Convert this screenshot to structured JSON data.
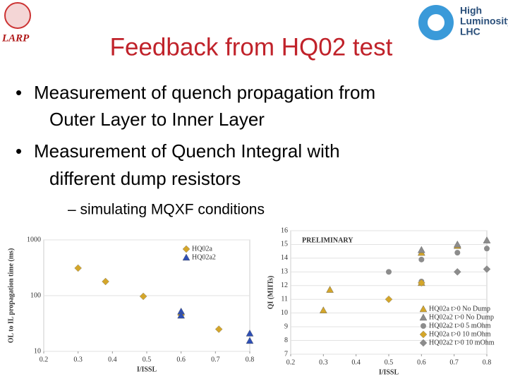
{
  "logos": {
    "left": "LARP",
    "right": [
      "High",
      "Luminosity",
      "LHC"
    ]
  },
  "header": {
    "title": "Feedback from HQ02 test"
  },
  "bullets": [
    "Measurement of quench propagation from",
    "Outer Layer to Inner Layer",
    "Measurement of Quench Integral with",
    "different dump resistors"
  ],
  "sub_bullet": "– simulating MQXF conditions",
  "chart_data": [
    {
      "type": "scatter",
      "ylabel": "OL to IL propagation time (ms)",
      "xlabel": "I/ISSL",
      "log_y": true,
      "xlim": [
        0.2,
        0.8
      ],
      "xticks": [
        0.2,
        0.3,
        0.4,
        0.5,
        0.6,
        0.7,
        0.8
      ],
      "ylim": [
        10,
        1000
      ],
      "yticks": [
        10,
        100,
        1000
      ],
      "legend": "top-right",
      "series": [
        {
          "name": "HQ02a",
          "color": "#d4a62a",
          "marker": "diamond",
          "x": [
            0.3,
            0.38,
            0.49,
            0.6,
            0.71
          ],
          "values": [
            312,
            179,
            97,
            45,
            25
          ]
        },
        {
          "name": "HQ02a2",
          "color": "#2e4fb5",
          "marker": "triangle",
          "x": [
            0.6,
            0.6,
            0.8,
            0.8
          ],
          "values": [
            52,
            44,
            21,
            15.5
          ]
        }
      ]
    },
    {
      "type": "scatter",
      "ylabel": "QI (MIITs)",
      "xlabel": "I/ISSL",
      "log_y": false,
      "annotation": "PRELIMINARY",
      "xlim": [
        0.2,
        0.8
      ],
      "xticks": [
        0.2,
        0.3,
        0.4,
        0.5,
        0.6,
        0.7,
        0.8
      ],
      "ylim": [
        7,
        16
      ],
      "yticks": [
        7,
        8,
        9,
        10,
        11,
        12,
        13,
        14,
        15,
        16
      ],
      "legend": "bottom-right",
      "series": [
        {
          "name": "HQ02a t>0 No Dump",
          "color": "#d4a62a",
          "marker": "triangle",
          "x": [
            0.3,
            0.32,
            0.6,
            0.6,
            0.71
          ],
          "values": [
            10.2,
            11.7,
            12.2,
            14.4,
            14.9
          ]
        },
        {
          "name": "HQ02a2 t>0 No Dump",
          "color": "#8c8c8c",
          "marker": "triangle",
          "x": [
            0.6,
            0.71,
            0.8
          ],
          "values": [
            14.6,
            15.0,
            15.3
          ]
        },
        {
          "name": "HQ02a2 t>0 5 mOhm",
          "color": "#8c8c8c",
          "marker": "circle",
          "x": [
            0.5,
            0.6,
            0.6,
            0.71,
            0.8
          ],
          "values": [
            13.0,
            13.9,
            12.3,
            14.4,
            14.7
          ]
        },
        {
          "name": "HQ02a t>0 10 mOhm",
          "color": "#d4a62a",
          "marker": "diamond",
          "x": [
            0.5,
            0.6
          ],
          "values": [
            11.0,
            12.2
          ]
        },
        {
          "name": "HQ02a2 t>0 10 mOhm",
          "color": "#8c8c8c",
          "marker": "diamond",
          "x": [
            0.71,
            0.8
          ],
          "values": [
            13.0,
            13.2
          ]
        }
      ]
    }
  ]
}
